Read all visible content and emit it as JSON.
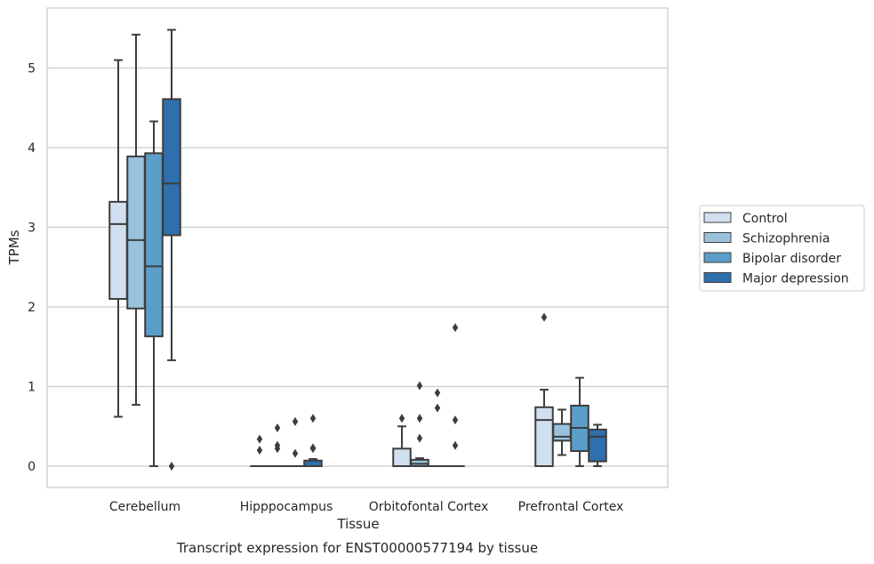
{
  "caption": "Transcript expression for ENST00000577194 by tissue",
  "chart_data": {
    "type": "boxplot",
    "xlabel": "Tissue",
    "ylabel": "TPMs",
    "ylim": [
      -0.27,
      5.75
    ],
    "yticks": [
      0,
      1,
      2,
      3,
      4,
      5
    ],
    "grid": "horizontal",
    "legend_position": "right",
    "categories": [
      "Cerebellum",
      "Hipppocampus",
      "Orbitofontal Cortex",
      "Prefrontal Cortex"
    ],
    "series": [
      {
        "name": "Control",
        "color": "#d1e0f0",
        "boxes": [
          {
            "whislo": 0.62,
            "q1": 2.1,
            "med": 3.04,
            "q3": 3.32,
            "whishi": 5.1,
            "fliers": []
          },
          {
            "whislo": 0,
            "q1": 0,
            "med": 0,
            "q3": 0,
            "whishi": 0,
            "fliers": [
              0.2,
              0.34
            ]
          },
          {
            "whislo": 0,
            "q1": 0,
            "med": 0,
            "q3": 0.22,
            "whishi": 0.5,
            "fliers": [
              0.6
            ]
          },
          {
            "whislo": 0,
            "q1": 0,
            "med": 0.58,
            "q3": 0.74,
            "whishi": 0.96,
            "fliers": [
              1.87
            ]
          }
        ]
      },
      {
        "name": "Schizophrenia",
        "color": "#9ac2dd",
        "boxes": [
          {
            "whislo": 0.77,
            "q1": 1.98,
            "med": 2.84,
            "q3": 3.89,
            "whishi": 5.42,
            "fliers": []
          },
          {
            "whislo": 0,
            "q1": 0,
            "med": 0,
            "q3": 0,
            "whishi": 0,
            "fliers": [
              0.22,
              0.26,
              0.48
            ]
          },
          {
            "whislo": 0,
            "q1": 0,
            "med": 0.03,
            "q3": 0.08,
            "whishi": 0.1,
            "fliers": [
              0.35,
              0.6,
              1.01
            ]
          },
          {
            "whislo": 0.14,
            "q1": 0.32,
            "med": 0.37,
            "q3": 0.53,
            "whishi": 0.71,
            "fliers": []
          }
        ]
      },
      {
        "name": "Bipolar disorder",
        "color": "#5b9ec9",
        "boxes": [
          {
            "whislo": 0,
            "q1": 1.63,
            "med": 2.51,
            "q3": 3.93,
            "whishi": 4.33,
            "fliers": []
          },
          {
            "whislo": 0,
            "q1": 0,
            "med": 0,
            "q3": 0,
            "whishi": 0,
            "fliers": [
              0.16,
              0.56
            ]
          },
          {
            "whislo": 0,
            "q1": 0,
            "med": 0,
            "q3": 0,
            "whishi": 0,
            "fliers": [
              0.73,
              0.92
            ]
          },
          {
            "whislo": 0,
            "q1": 0.19,
            "med": 0.48,
            "q3": 0.76,
            "whishi": 1.11,
            "fliers": []
          }
        ]
      },
      {
        "name": "Major depression",
        "color": "#2f6fad",
        "boxes": [
          {
            "whislo": 1.33,
            "q1": 2.9,
            "med": 3.55,
            "q3": 4.61,
            "whishi": 5.48,
            "fliers": [
              0
            ]
          },
          {
            "whislo": 0,
            "q1": 0,
            "med": 0,
            "q3": 0.07,
            "whishi": 0.09,
            "fliers": [
              0.22,
              0.23,
              0.6
            ]
          },
          {
            "whislo": 0,
            "q1": 0,
            "med": 0,
            "q3": 0,
            "whishi": 0,
            "fliers": [
              0.26,
              0.58,
              1.74
            ]
          },
          {
            "whislo": 0,
            "q1": 0.06,
            "med": 0.37,
            "q3": 0.46,
            "whishi": 0.52,
            "fliers": []
          }
        ]
      }
    ]
  }
}
